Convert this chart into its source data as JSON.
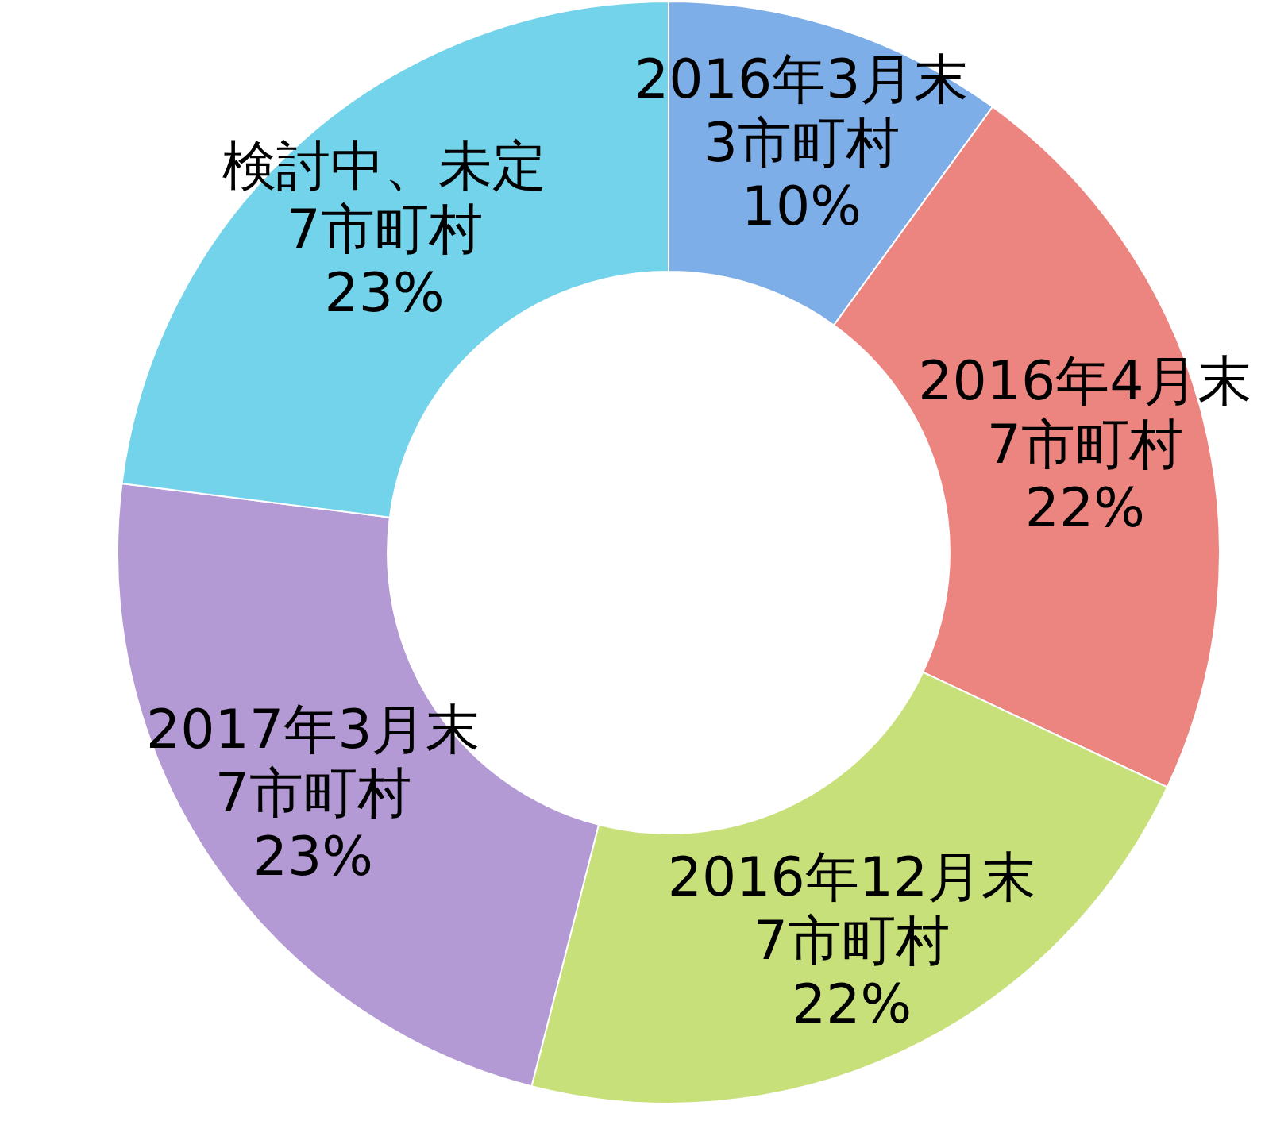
{
  "chart_data": {
    "type": "donut",
    "categories": [
      "2016年3月末 3市町村",
      "2016年4月末 7市町村",
      "2016年12月末 7市町村",
      "2017年3月末 7市町村",
      "検討中、未定 7市町村"
    ],
    "values": [
      10,
      22,
      22,
      23,
      23
    ],
    "value_labels": [
      "10%",
      "22%",
      "22%",
      "23%",
      "23%"
    ],
    "colors": [
      "#7eaee8",
      "#ec8580",
      "#c8e07a",
      "#b49ad4",
      "#72d3ea"
    ]
  }
}
